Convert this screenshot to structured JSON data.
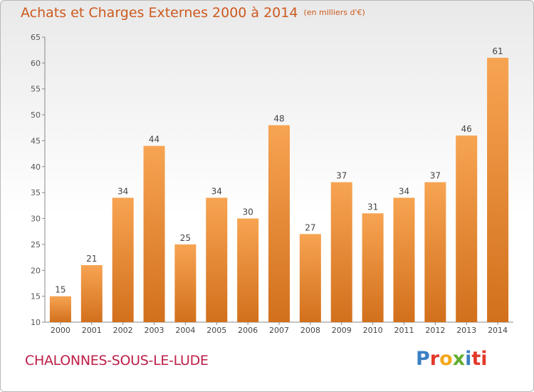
{
  "header": {
    "title": "Achats et Charges Externes 2000 à 2014",
    "subtitle": "(en milliers d'€)"
  },
  "footer": {
    "commune": "CHALONNES-SOUS-LE-LUDE",
    "logo_letters": [
      "P",
      "r",
      "o",
      "x",
      "i",
      "ti"
    ]
  },
  "colors": {
    "bar_top": "#f7a452",
    "bar_bottom": "#d2701c",
    "title": "#cc5a1e",
    "commune": "#bd1e46"
  },
  "chart_data": {
    "type": "bar",
    "categories": [
      "2000",
      "2001",
      "2002",
      "2003",
      "2004",
      "2005",
      "2006",
      "2007",
      "2008",
      "2009",
      "2010",
      "2011",
      "2012",
      "2013",
      "2014"
    ],
    "values": [
      15,
      21,
      34,
      44,
      25,
      34,
      30,
      48,
      27,
      37,
      31,
      34,
      37,
      46,
      61
    ],
    "title": "Achats et Charges Externes 2000 à 2014",
    "subtitle": "(en milliers d'€)",
    "xlabel": "",
    "ylabel": "",
    "ylim": [
      10,
      65
    ],
    "yticks": [
      10,
      15,
      20,
      25,
      30,
      35,
      40,
      45,
      50,
      55,
      60,
      65
    ],
    "grid": false,
    "legend": "none",
    "data_labels": true
  }
}
